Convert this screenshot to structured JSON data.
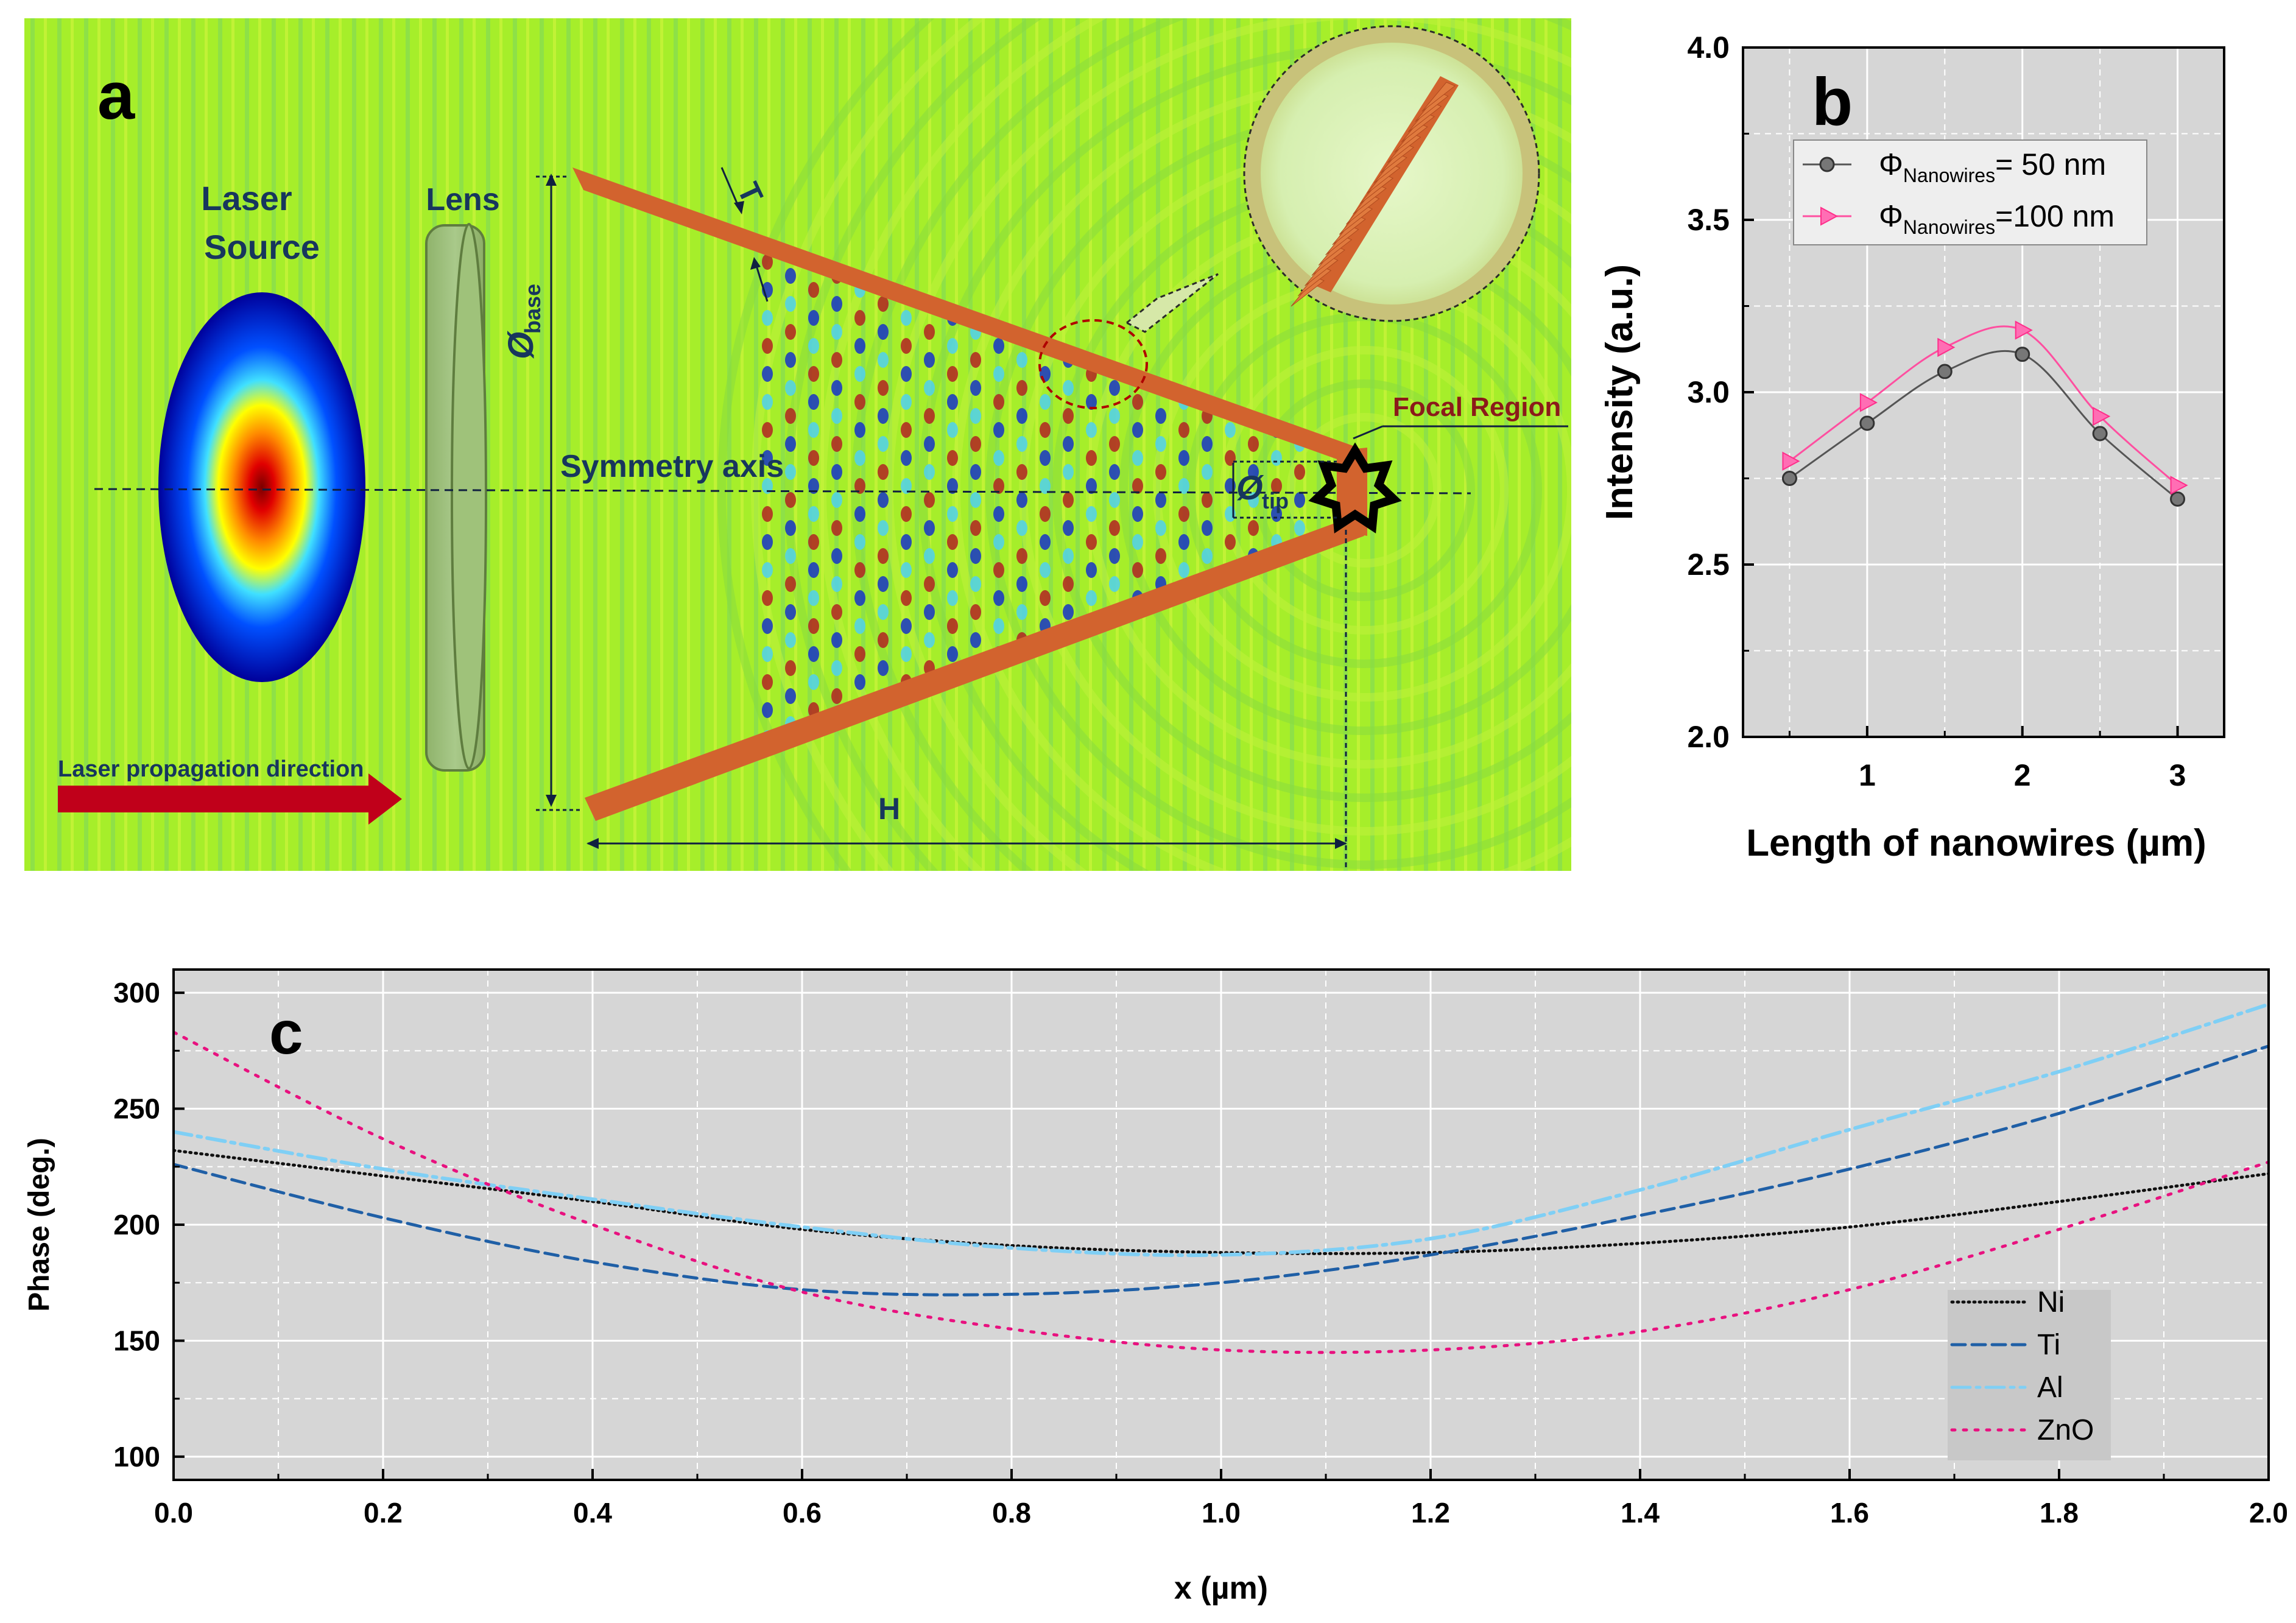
{
  "panel_a": {
    "label": "a",
    "laser_source": [
      "Laser",
      "Source"
    ],
    "lens": "Lens",
    "phi_base_symbol": "Ø",
    "phi_base_sub": "base",
    "t_label": "T",
    "symmetry_axis": "Symmetry axis",
    "phi_tip_symbol": "Ø",
    "phi_tip_sub": "tip",
    "focal_region": "Focal Region",
    "propagation": "Laser propagation direction",
    "h_label": "H",
    "colors": {
      "background": "#a6ee2a",
      "cone": "#d2632e",
      "arrow": "#c0001a",
      "label_text": "#17365d",
      "focal_text": "#8b1a1a"
    }
  },
  "chart_data": [
    {
      "id": "b",
      "label": "b",
      "type": "line",
      "title": "",
      "xlabel": "Length of nanowires (µm)",
      "ylabel": "Intensity (a.u.)",
      "xlim": [
        0.2,
        3.3
      ],
      "ylim": [
        2.0,
        4.0
      ],
      "xticks": [
        1,
        2,
        3
      ],
      "yticks": [
        2.0,
        2.5,
        3.0,
        3.5,
        4.0
      ],
      "ytick_labels": [
        "2.0",
        "2.5",
        "3.0",
        "3.5",
        "4.0"
      ],
      "x": [
        0.5,
        1.0,
        1.5,
        2.0,
        2.5,
        3.0
      ],
      "series": [
        {
          "name_symbol": "Φ",
          "name_sub": "Nanowires",
          "name_value": "=  50 nm",
          "values": [
            2.75,
            2.91,
            3.06,
            3.11,
            2.88,
            2.69
          ],
          "color": "#555555",
          "marker": "circle"
        },
        {
          "name_symbol": "Φ",
          "name_sub": "Nanowires",
          "name_value": "=100 nm",
          "values": [
            2.8,
            2.97,
            3.13,
            3.18,
            2.93,
            2.73
          ],
          "color": "#ff4fa0",
          "marker": "triangle-right"
        }
      ],
      "legend_position": "top-left",
      "grid": true
    },
    {
      "id": "c",
      "label": "c",
      "type": "line",
      "title": "",
      "xlabel": "x (µm)",
      "ylabel": "Phase (deg.)",
      "xlim": [
        0.0,
        2.0
      ],
      "ylim": [
        90,
        310
      ],
      "xticks": [
        0.0,
        0.2,
        0.4,
        0.6,
        0.8,
        1.0,
        1.2,
        1.4,
        1.6,
        1.8,
        2.0
      ],
      "xtick_labels": [
        "0.0",
        "0.2",
        "0.4",
        "0.6",
        "0.8",
        "1.0",
        "1.2",
        "1.4",
        "1.6",
        "1.8",
        "2.0"
      ],
      "yticks": [
        100,
        150,
        200,
        250,
        300
      ],
      "x": [
        0.0,
        0.2,
        0.4,
        0.6,
        0.8,
        1.0,
        1.2,
        1.4,
        1.6,
        1.8,
        2.0
      ],
      "series": [
        {
          "name": "Ni",
          "values": [
            232,
            221,
            210,
            198,
            191,
            188,
            188,
            192,
            199,
            210,
            222
          ],
          "color": "#111111",
          "dash": "2 7"
        },
        {
          "name": "Ti",
          "values": [
            226,
            203,
            184,
            172,
            170,
            175,
            187,
            204,
            224,
            248,
            277
          ],
          "color": "#1f5fa6",
          "dash": "22 11"
        },
        {
          "name": "Al",
          "values": [
            240,
            224,
            211,
            199,
            190,
            187,
            194,
            215,
            241,
            266,
            295
          ],
          "color": "#7fcff5",
          "dash": "30 10 6 10"
        },
        {
          "name": "ZnO",
          "values": [
            283,
            237,
            200,
            171,
            155,
            146,
            146,
            154,
            172,
            198,
            227
          ],
          "color": "#e8117f",
          "dash": "5 14"
        }
      ],
      "legend_position": "bottom-right",
      "grid": true
    }
  ]
}
